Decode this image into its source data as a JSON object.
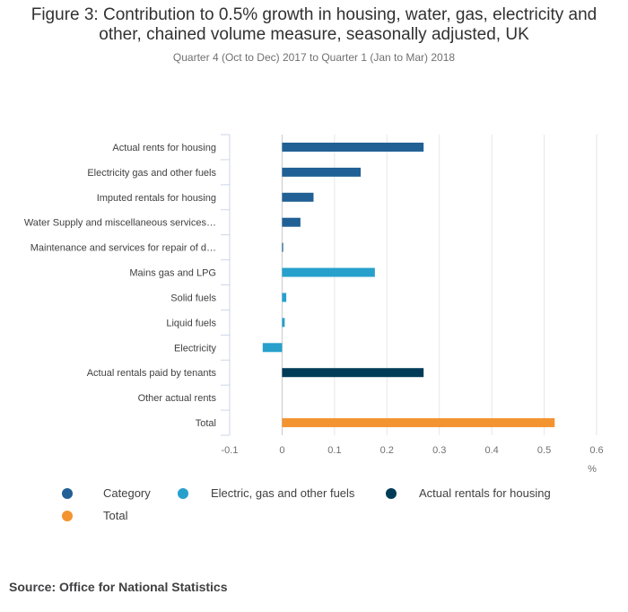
{
  "chart_data": {
    "type": "bar",
    "orientation": "horizontal",
    "title_lines": [
      "Figure 3: Contribution to 0.5% growth in housing, water, gas, electricity and",
      "other, chained volume measure, seasonally adjusted, UK"
    ],
    "subtitle": "Quarter 4 (Oct to Dec) 2017 to Quarter 1 (Jan to Mar) 2018",
    "xlabel": "%",
    "xlim": [
      -0.1,
      0.6
    ],
    "xticks": [
      -0.1,
      0,
      0.1,
      0.2,
      0.3,
      0.4,
      0.5,
      0.6
    ],
    "xtick_labels": [
      "-0.1",
      "0",
      "0.1",
      "0.2",
      "0.3",
      "0.4",
      "0.5",
      "0.6"
    ],
    "categories": [
      "Actual rents for housing",
      "Electricity gas and other fuels",
      "Imputed rentals for housing",
      "Water Supply and miscellaneous services…",
      "Maintenance and services for repair of d…",
      "Mains gas and LPG",
      "Solid fuels",
      "Liquid fuels",
      "Electricity",
      "Actual rentals paid by tenants",
      "Other actual rents",
      "Total"
    ],
    "series": [
      {
        "name": "Category",
        "color": "#206095",
        "values": [
          0.27,
          0.15,
          0.06,
          0.035,
          0.002,
          null,
          null,
          null,
          null,
          null,
          null,
          null
        ]
      },
      {
        "name": "Electric, gas and other fuels",
        "color": "#27a0cc",
        "values": [
          null,
          null,
          null,
          null,
          null,
          0.177,
          0.008,
          0.005,
          -0.037,
          null,
          null,
          null
        ]
      },
      {
        "name": "Actual rentals for housing",
        "color": "#003c57",
        "values": [
          null,
          null,
          null,
          null,
          null,
          null,
          null,
          null,
          null,
          0.27,
          0.0,
          null
        ]
      },
      {
        "name": "Total",
        "color": "#f39431",
        "values": [
          null,
          null,
          null,
          null,
          null,
          null,
          null,
          null,
          null,
          null,
          null,
          0.52
        ]
      }
    ],
    "grid": true,
    "legend_position": "bottom"
  },
  "legend": {
    "items": [
      {
        "label": "Category",
        "color": "#206095"
      },
      {
        "label": "Electric, gas and other fuels",
        "color": "#27a0cc"
      },
      {
        "label": "Actual rentals for housing",
        "color": "#003c57"
      },
      {
        "label": "Total",
        "color": "#f39431"
      }
    ]
  },
  "source": "Source: Office for National Statistics"
}
